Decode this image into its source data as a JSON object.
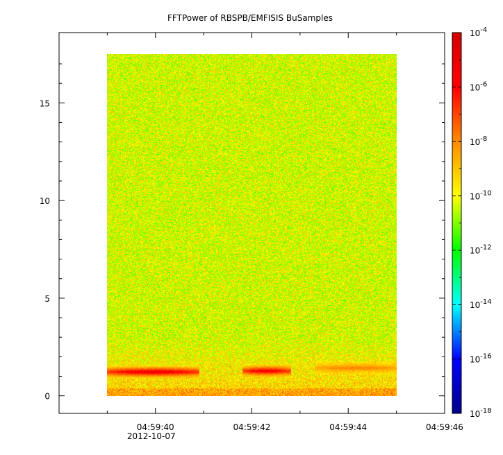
{
  "chart_data": {
    "type": "heatmap",
    "title": "FFTPower of RBSPB/EMFISIS  BuSamples",
    "xlabel": "",
    "ylabel": "",
    "x_ticks": [
      {
        "label": "04:59:40",
        "sublabel": "2012-10-07",
        "t": 40
      },
      {
        "label": "04:59:42",
        "t": 42
      },
      {
        "label": "04:59:44",
        "t": 44
      },
      {
        "label": "04:59:46",
        "t": 46
      }
    ],
    "x_minor_ticks": [
      39,
      41,
      43,
      45
    ],
    "xlim": [
      38.0,
      46.0
    ],
    "data_x_range": [
      39.0,
      45.0
    ],
    "y_ticks": [
      0,
      5,
      10,
      15
    ],
    "ylim": [
      -0.9,
      18.6
    ],
    "data_y_range": [
      0,
      17.5
    ],
    "colorbar": {
      "scale": "log",
      "range": [
        1e-18,
        0.0001
      ],
      "tick_labels": [
        {
          "base": "10",
          "exp": "-4",
          "value": -4
        },
        {
          "base": "10",
          "exp": "-6",
          "value": -6
        },
        {
          "base": "10",
          "exp": "-8",
          "value": -8
        },
        {
          "base": "10",
          "exp": "-10",
          "value": -10
        },
        {
          "base": "10",
          "exp": "-12",
          "value": -12
        },
        {
          "base": "10",
          "exp": "-14",
          "value": -14
        },
        {
          "base": "10",
          "exp": "-16",
          "value": -16
        },
        {
          "base": "10",
          "exp": "-18",
          "value": -18
        }
      ],
      "colors": [
        "#00008b",
        "#0000ff",
        "#00ffff",
        "#00ff00",
        "#ffff00",
        "#ff8c00",
        "#ff0000",
        "#d40000"
      ]
    },
    "background_level_log10": -10.2,
    "features": [
      {
        "t_start": 39.0,
        "t_end": 40.9,
        "freq": 1.25,
        "log10_power": -5.2
      },
      {
        "t_start": 41.8,
        "t_end": 42.8,
        "freq": 1.3,
        "log10_power": -5.5
      },
      {
        "t_start": 43.3,
        "t_end": 45.0,
        "freq": 1.45,
        "log10_power": -7.8
      }
    ],
    "grid": false
  }
}
